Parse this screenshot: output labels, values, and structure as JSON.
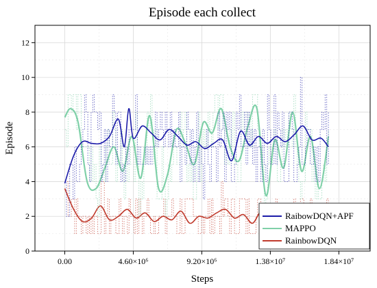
{
  "chart_data": {
    "type": "line",
    "title": "Episode each collect",
    "xlabel": "Steps",
    "ylabel": "Episode",
    "xlim": [
      -2000000,
      20500000
    ],
    "ylim": [
      0,
      13
    ],
    "x_ticks": [
      0,
      4600000,
      9200000,
      13800000,
      18400000
    ],
    "x_tick_labels": [
      "0.00",
      "4.60×10⁶",
      "9.20×10⁶",
      "1.38×10⁷",
      "1.84×10⁷"
    ],
    "y_ticks": [
      0,
      2,
      4,
      6,
      8,
      10,
      12
    ],
    "y_tick_labels": [
      "0",
      "2",
      "4",
      "6",
      "8",
      "10",
      "12"
    ],
    "grid": true,
    "legend_position": "bottom-right",
    "series": [
      {
        "name": "RaibowDQN+APF",
        "color": "#1a1aa8",
        "x": [
          0,
          600000,
          1200000,
          1800000,
          2400000,
          3000000,
          3600000,
          4000000,
          4300000,
          4600000,
          5200000,
          5800000,
          6400000,
          7000000,
          7600000,
          8200000,
          8800000,
          9400000,
          10000000,
          10600000,
          11200000,
          11800000,
          12400000,
          13000000,
          13600000,
          14200000,
          14800000,
          15400000,
          16000000,
          16600000,
          17200000,
          17700000
        ],
        "y": [
          3.9,
          5.5,
          6.3,
          6.2,
          6.2,
          6.6,
          7.6,
          6.0,
          8.2,
          6.5,
          7.2,
          6.8,
          6.4,
          7.0,
          6.6,
          6.1,
          6.3,
          5.9,
          6.2,
          6.4,
          5.2,
          6.9,
          6.1,
          6.6,
          6.2,
          6.6,
          6.3,
          6.7,
          7.2,
          6.4,
          6.5,
          6.0
        ]
      },
      {
        "name": "MAPPO",
        "color": "#7fd0a8",
        "x": [
          0,
          400000,
          900000,
          1500000,
          2100000,
          2700000,
          3300000,
          3900000,
          4500000,
          5100000,
          5700000,
          6300000,
          6900000,
          7500000,
          8100000,
          8700000,
          9300000,
          9900000,
          10500000,
          11100000,
          11700000,
          12300000,
          12900000,
          13500000,
          14100000,
          14700000,
          15300000,
          15900000,
          16500000,
          17100000,
          17700000
        ],
        "y": [
          7.7,
          8.2,
          7.4,
          4.0,
          3.6,
          4.8,
          6.0,
          4.6,
          6.6,
          4.2,
          7.8,
          3.6,
          4.4,
          7.0,
          6.2,
          5.0,
          7.4,
          6.8,
          8.2,
          6.0,
          5.2,
          7.2,
          8.2,
          3.2,
          6.4,
          4.8,
          8.0,
          4.6,
          6.6,
          3.6,
          6.6
        ]
      },
      {
        "name": "RainbowDQN",
        "color": "#c0392b",
        "x": [
          0,
          600000,
          1200000,
          1800000,
          2400000,
          3000000,
          3600000,
          4200000,
          4800000,
          5400000,
          6000000,
          6600000,
          7200000,
          7800000,
          8400000,
          9000000,
          9600000,
          10200000,
          10800000,
          11400000,
          12000000,
          12600000,
          13200000,
          13800000,
          14400000,
          15000000,
          15600000,
          16200000,
          16800000,
          17400000,
          17700000
        ],
        "y": [
          3.6,
          2.4,
          1.7,
          1.9,
          2.6,
          1.8,
          2.0,
          2.4,
          1.9,
          2.2,
          1.7,
          2.0,
          1.8,
          2.3,
          1.6,
          2.0,
          1.9,
          2.2,
          2.4,
          1.9,
          2.1,
          1.6,
          2.3,
          1.9,
          1.8,
          2.6,
          1.7,
          2.1,
          1.6,
          2.0,
          2.0
        ]
      }
    ]
  }
}
